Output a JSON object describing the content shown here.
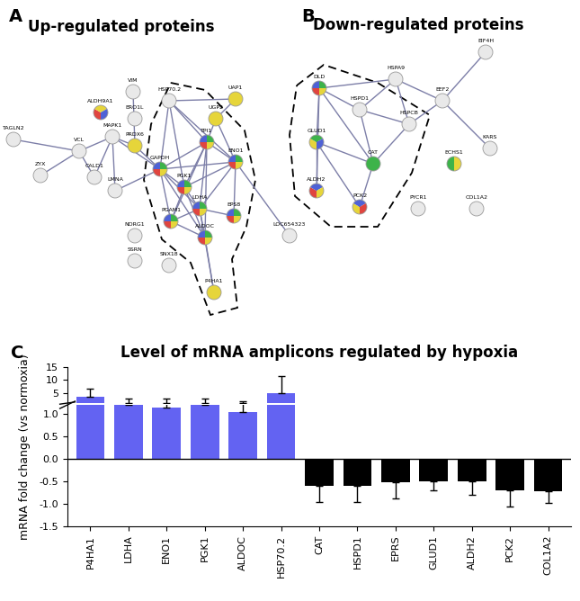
{
  "panels": [
    {
      "letter": "A",
      "title": "Up-regulated proteins",
      "nodes": [
        "TAGLN2",
        "ZYX",
        "VCL",
        "CALD1",
        "MAPK1",
        "VIM",
        "ALDH9A1",
        "ERO1L",
        "PRDX6",
        "LMNA",
        "NDRG1",
        "SSRN",
        "HSP70.2",
        "UAP1",
        "UGP2",
        "GAPDH",
        "TPI1",
        "ENO1",
        "PGK1",
        "LDHA",
        "PGAM1",
        "EPS8",
        "ALDOC",
        "LOC654323",
        "SNX18",
        "P4HA1"
      ],
      "edges": [
        [
          "TAGLN2",
          "VCL"
        ],
        [
          "ZYX",
          "VCL"
        ],
        [
          "VCL",
          "CALD1"
        ],
        [
          "VCL",
          "MAPK1"
        ],
        [
          "CALD1",
          "MAPK1"
        ],
        [
          "MAPK1",
          "PRDX6"
        ],
        [
          "MAPK1",
          "LMNA"
        ],
        [
          "MAPK1",
          "GAPDH"
        ],
        [
          "VIM",
          "PRDX6"
        ],
        [
          "PRDX6",
          "GAPDH"
        ],
        [
          "LMNA",
          "GAPDH"
        ],
        [
          "HSP70.2",
          "GAPDH"
        ],
        [
          "HSP70.2",
          "TPI1"
        ],
        [
          "HSP70.2",
          "PGK1"
        ],
        [
          "HSP70.2",
          "ENO1"
        ],
        [
          "HSP70.2",
          "UAP1"
        ],
        [
          "UAP1",
          "UGP2"
        ],
        [
          "UGP2",
          "TPI1"
        ],
        [
          "UGP2",
          "ENO1"
        ],
        [
          "GAPDH",
          "TPI1"
        ],
        [
          "GAPDH",
          "PGK1"
        ],
        [
          "GAPDH",
          "ENO1"
        ],
        [
          "GAPDH",
          "LDHA"
        ],
        [
          "GAPDH",
          "PGAM1"
        ],
        [
          "GAPDH",
          "ALDOC"
        ],
        [
          "TPI1",
          "PGK1"
        ],
        [
          "TPI1",
          "ENO1"
        ],
        [
          "TPI1",
          "LDHA"
        ],
        [
          "TPI1",
          "ALDOC"
        ],
        [
          "TPI1",
          "PGAM1"
        ],
        [
          "ENO1",
          "PGK1"
        ],
        [
          "ENO1",
          "LDHA"
        ],
        [
          "ENO1",
          "EPS8"
        ],
        [
          "PGK1",
          "LDHA"
        ],
        [
          "PGK1",
          "PGAM1"
        ],
        [
          "PGK1",
          "ALDOC"
        ],
        [
          "LDHA",
          "PGAM1"
        ],
        [
          "LDHA",
          "ALDOC"
        ],
        [
          "LDHA",
          "EPS8"
        ],
        [
          "PGAM1",
          "ALDOC"
        ],
        [
          "ENO1",
          "LOC654323"
        ],
        [
          "LDHA",
          "P4HA1"
        ],
        [
          "ALDOC",
          "P4HA1"
        ]
      ]
    },
    {
      "letter": "B",
      "title": "Down-regulated proteins",
      "nodes": [
        "EIF4H",
        "HSPA9",
        "EEF2",
        "KARS",
        "DLD",
        "HSPD1",
        "HSPCB",
        "GLUD1",
        "CAT",
        "ECHS1",
        "ALDH2",
        "PCK2",
        "PYCR1",
        "COL1A2"
      ],
      "edges": [
        [
          "EIF4H",
          "EEF2"
        ],
        [
          "HSPA9",
          "HSPD1"
        ],
        [
          "HSPA9",
          "HSPCB"
        ],
        [
          "HSPA9",
          "DLD"
        ],
        [
          "HSPA9",
          "EEF2"
        ],
        [
          "EEF2",
          "HSPCB"
        ],
        [
          "EEF2",
          "KARS"
        ],
        [
          "HSPD1",
          "HSPCB"
        ],
        [
          "HSPD1",
          "DLD"
        ],
        [
          "HSPD1",
          "CAT"
        ],
        [
          "HSPCB",
          "CAT"
        ],
        [
          "DLD",
          "GLUD1"
        ],
        [
          "DLD",
          "ALDH2"
        ],
        [
          "DLD",
          "CAT"
        ],
        [
          "GLUD1",
          "ALDH2"
        ],
        [
          "GLUD1",
          "CAT"
        ],
        [
          "GLUD1",
          "PCK2"
        ],
        [
          "PCK2",
          "CAT"
        ]
      ]
    }
  ],
  "chart_data": {
    "type": "bar",
    "letter": "C",
    "title": "Level of mRNA amplicons regulated by hypoxia",
    "y_label": "mRNA fold change (vs normoxia)",
    "categories": [
      "P4HA1",
      "LDHA",
      "ENO1",
      "PGK1",
      "ALDOC",
      "HSP70.2",
      "CAT",
      "HSPD1",
      "EPRS",
      "GLUD1",
      "ALDH2",
      "PCK2",
      "COL1A2"
    ],
    "values": [
      3.5,
      1.2,
      1.15,
      1.2,
      1.05,
      5.0,
      -0.6,
      -0.6,
      -0.52,
      -0.5,
      -0.5,
      -0.7,
      -0.72
    ],
    "errors": [
      3.2,
      1.8,
      1.8,
      1.6,
      0.9,
      6.5,
      0.35,
      0.35,
      0.35,
      0.2,
      0.3,
      0.35,
      0.25
    ],
    "colors": [
      "#6363f2",
      "#6363f2",
      "#6363f2",
      "#6363f2",
      "#6363f2",
      "#6363f2",
      "#000000",
      "#000000",
      "#000000",
      "#000000",
      "#000000",
      "#000000",
      "#000000"
    ],
    "ylim": [
      -1.5,
      15
    ],
    "y_break": 1.2,
    "yticks": [
      {
        "value": -1.5,
        "label": "-1.5"
      },
      {
        "value": -1.0,
        "label": "-1.0"
      },
      {
        "value": -0.5,
        "label": "-0.5"
      },
      {
        "value": 0.0,
        "label": "0.0"
      },
      {
        "value": 0.5,
        "label": "0.5"
      },
      {
        "value": 1.0,
        "label": "1.0"
      },
      5,
      10,
      15
    ],
    "grid": false
  }
}
